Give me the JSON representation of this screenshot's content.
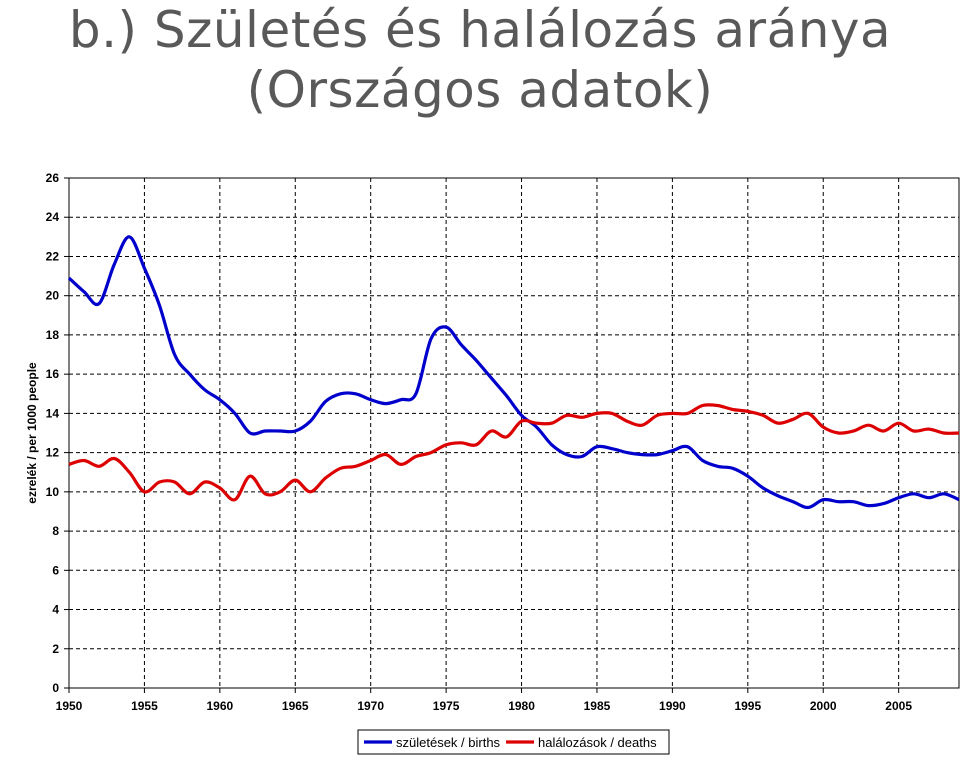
{
  "slide": {
    "title_line1": "b.) Születés és halálozás aránya",
    "title_line2": "(Országos adatok)"
  },
  "chart_data": {
    "type": "line",
    "title": "",
    "xlabel": "",
    "ylabel": "ezrelék / per 1000 people",
    "xlim": [
      1950,
      2009
    ],
    "ylim": [
      0,
      26
    ],
    "x_ticks": [
      1950,
      1955,
      1960,
      1965,
      1970,
      1975,
      1980,
      1985,
      1990,
      1995,
      2000,
      2005
    ],
    "y_ticks": [
      0,
      2,
      4,
      6,
      8,
      10,
      12,
      14,
      16,
      18,
      20,
      22,
      24,
      26
    ],
    "grid": true,
    "legend_position": "bottom",
    "x": [
      1950,
      1951,
      1952,
      1953,
      1954,
      1955,
      1956,
      1957,
      1958,
      1959,
      1960,
      1961,
      1962,
      1963,
      1964,
      1965,
      1966,
      1967,
      1968,
      1969,
      1970,
      1971,
      1972,
      1973,
      1974,
      1975,
      1976,
      1977,
      1978,
      1979,
      1980,
      1981,
      1982,
      1983,
      1984,
      1985,
      1986,
      1987,
      1988,
      1989,
      1990,
      1991,
      1992,
      1993,
      1994,
      1995,
      1996,
      1997,
      1998,
      1999,
      2000,
      2001,
      2002,
      2003,
      2004,
      2005,
      2006,
      2007,
      2008,
      2009
    ],
    "series": [
      {
        "name": "születések / births",
        "color": "#0000cc",
        "values": [
          20.9,
          20.2,
          19.6,
          21.6,
          23.0,
          21.4,
          19.5,
          17.0,
          16.0,
          15.2,
          14.7,
          14.0,
          13.0,
          13.1,
          13.1,
          13.1,
          13.6,
          14.6,
          15.0,
          15.0,
          14.7,
          14.5,
          14.7,
          15.0,
          17.8,
          18.4,
          17.5,
          16.7,
          15.8,
          14.9,
          13.9,
          13.3,
          12.4,
          11.9,
          11.8,
          12.3,
          12.2,
          12.0,
          11.9,
          11.9,
          12.1,
          12.3,
          11.6,
          11.3,
          11.2,
          10.8,
          10.2,
          9.8,
          9.5,
          9.2,
          9.6,
          9.5,
          9.5,
          9.3,
          9.4,
          9.7,
          9.9,
          9.7,
          9.9,
          9.6
        ]
      },
      {
        "name": "halálozások / deaths",
        "color": "#dd0000",
        "values": [
          11.4,
          11.6,
          11.3,
          11.7,
          11.0,
          10.0,
          10.5,
          10.5,
          9.9,
          10.5,
          10.2,
          9.6,
          10.8,
          9.9,
          10.0,
          10.6,
          10.0,
          10.7,
          11.2,
          11.3,
          11.6,
          11.9,
          11.4,
          11.8,
          12.0,
          12.4,
          12.5,
          12.4,
          13.1,
          12.8,
          13.6,
          13.5,
          13.5,
          13.9,
          13.8,
          14.0,
          14.0,
          13.6,
          13.4,
          13.9,
          14.0,
          14.0,
          14.4,
          14.4,
          14.2,
          14.1,
          13.9,
          13.5,
          13.7,
          14.0,
          13.3,
          13.0,
          13.1,
          13.4,
          13.1,
          13.5,
          13.1,
          13.2,
          13.0,
          13.0
        ]
      }
    ]
  }
}
